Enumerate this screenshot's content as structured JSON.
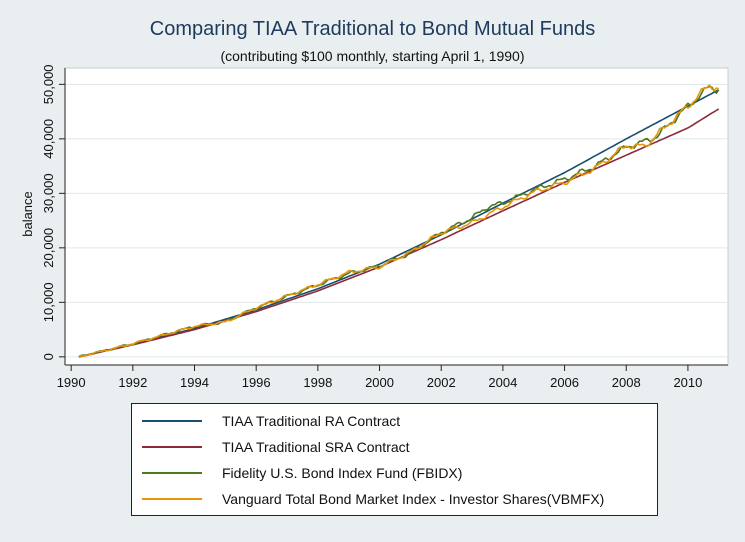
{
  "title": "Comparing TIAA Traditional to Bond Mutual Funds",
  "subtitle": "(contributing $100 monthly, starting April 1, 1990)",
  "chart_data": {
    "type": "line",
    "title": "Comparing TIAA Traditional to Bond Mutual Funds",
    "subtitle": "(contributing $100 monthly, starting April 1, 1990)",
    "ylabel": "balance",
    "xlabel": "",
    "xlim": [
      1989.8,
      2011.3
    ],
    "ylim": [
      -1500,
      53000
    ],
    "xticks": [
      1990,
      1992,
      1994,
      1996,
      1998,
      2000,
      2002,
      2004,
      2006,
      2008,
      2010
    ],
    "yticks": [
      0,
      10000,
      20000,
      30000,
      40000,
      50000
    ],
    "ytick_labels": [
      "0",
      "10,000",
      "20,000",
      "30,000",
      "40,000",
      "50,000"
    ],
    "grid": "horizontal",
    "legend_position": "bottom",
    "series": [
      {
        "name": "TIAA Traditional RA Contract",
        "color": "#1a4d6e",
        "points": [
          [
            1990.25,
            0
          ],
          [
            1992,
            2300
          ],
          [
            1994,
            5200
          ],
          [
            1996,
            8600
          ],
          [
            1998,
            12500
          ],
          [
            2000,
            17000
          ],
          [
            2002,
            22400
          ],
          [
            2004,
            28200
          ],
          [
            2006,
            33800
          ],
          [
            2008,
            40000
          ],
          [
            2010,
            46000
          ],
          [
            2011,
            49000
          ]
        ]
      },
      {
        "name": "TIAA Traditional SRA Contract",
        "color": "#8b2a3a",
        "points": [
          [
            1990.25,
            0
          ],
          [
            1992,
            2200
          ],
          [
            1994,
            5000
          ],
          [
            1996,
            8300
          ],
          [
            1998,
            12100
          ],
          [
            2000,
            16500
          ],
          [
            2002,
            21500
          ],
          [
            2004,
            26800
          ],
          [
            2006,
            32000
          ],
          [
            2008,
            37000
          ],
          [
            2010,
            42000
          ],
          [
            2011,
            45500
          ]
        ]
      },
      {
        "name": "Fidelity U.S. Bond Index Fund (FBIDX)",
        "color": "#4d7a1f",
        "points": [
          [
            1990.25,
            0
          ],
          [
            1992,
            2400
          ],
          [
            1994,
            5600
          ],
          [
            1995,
            6400
          ],
          [
            1996,
            9000
          ],
          [
            1998,
            13200
          ],
          [
            1999,
            15300
          ],
          [
            2000,
            16700
          ],
          [
            2001,
            19000
          ],
          [
            2002,
            22800
          ],
          [
            2003,
            25500
          ],
          [
            2003.5,
            27500
          ],
          [
            2004,
            28200
          ],
          [
            2005,
            30600
          ],
          [
            2006,
            32600
          ],
          [
            2007,
            35000
          ],
          [
            2008,
            38500
          ],
          [
            2008.6,
            39500
          ],
          [
            2009,
            40500
          ],
          [
            2010,
            46000
          ],
          [
            2010.7,
            49500
          ],
          [
            2011,
            49000
          ]
        ]
      },
      {
        "name": "Vanguard Total Bond Market Index - Investor Shares(VBMFX)",
        "color": "#e8950a",
        "points": [
          [
            1990.25,
            0
          ],
          [
            1992,
            2400
          ],
          [
            1994,
            5600
          ],
          [
            1995,
            6400
          ],
          [
            1996,
            9000
          ],
          [
            1998,
            13300
          ],
          [
            1999,
            15500
          ],
          [
            2000,
            16500
          ],
          [
            2001,
            19200
          ],
          [
            2002,
            22800
          ],
          [
            2003,
            24600
          ],
          [
            2004,
            27500
          ],
          [
            2005,
            30200
          ],
          [
            2006,
            32000
          ],
          [
            2007,
            34600
          ],
          [
            2008,
            38800
          ],
          [
            2008.6,
            38600
          ],
          [
            2009,
            40800
          ],
          [
            2010,
            46000
          ],
          [
            2010.7,
            49900
          ],
          [
            2011,
            49200
          ]
        ]
      }
    ]
  }
}
